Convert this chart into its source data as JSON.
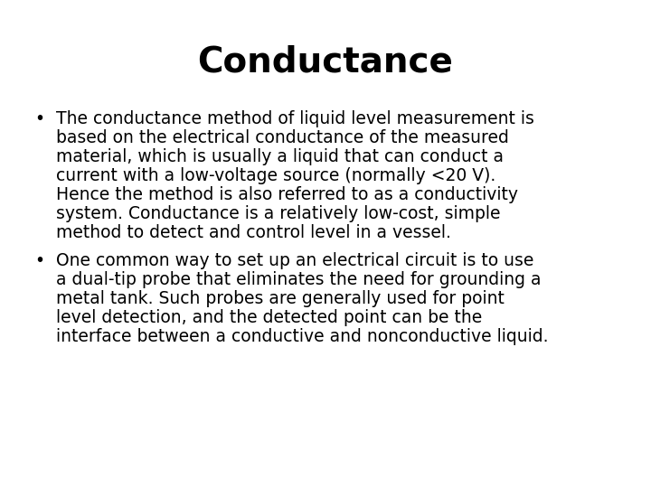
{
  "title": "Conductance",
  "title_fontsize": 28,
  "title_fontweight": "bold",
  "body_fontsize": 13.5,
  "background_color": "#ffffff",
  "text_color": "#000000",
  "bullet1": "The conductance method of liquid level measurement is based on the electrical conductance of the measured material, which is usually a liquid that can conduct a current with a low-voltage source (normally <20 V). Hence the method is also referred to as a conductivity system. Conductance is a relatively low-cost, simple method to detect and control level in a vessel.",
  "bullet2": "One common way to set up an electrical circuit is to use a dual-tip probe that eliminates the need for grounding a metal tank. Such probes are generally used for point level detection, and the detected point can be the interface between a conductive and nonconductive liquid.",
  "bullet1_lines": [
    "The conductance method of liquid level measurement is",
    "based on the electrical conductance of the measured",
    "material, which is usually a liquid that can conduct a",
    "current with a low-voltage source (normally <20 V).",
    "Hence the method is also referred to as a conductivity",
    "system. Conductance is a relatively low-cost, simple",
    "method to detect and control level in a vessel."
  ],
  "bullet2_lines": [
    "One common way to set up an electrical circuit is to use",
    "a dual-tip probe that eliminates the need for grounding a",
    "metal tank. Such probes are generally used for point",
    "level detection, and the detected point can be the",
    "interface between a conductive and nonconductive liquid."
  ],
  "fig_width": 7.2,
  "fig_height": 5.4,
  "dpi": 100
}
